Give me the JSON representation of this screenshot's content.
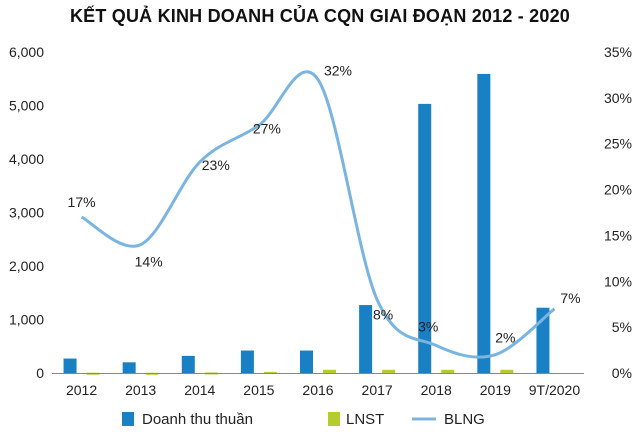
{
  "chart_data": {
    "type": "bar",
    "title": "KẾT QUẢ KINH DOANH CỦA CQN GIAI ĐOẠN 2012 - 2020",
    "categories": [
      "2012",
      "2013",
      "2014",
      "2015",
      "2016",
      "2017",
      "2018",
      "2019",
      "9T/2020"
    ],
    "y_left": {
      "range": [
        0,
        6000
      ],
      "ticks": [
        0,
        1000,
        2000,
        3000,
        4000,
        5000,
        6000
      ],
      "tick_labels": [
        "0",
        "1,000",
        "2,000",
        "3,000",
        "4,000",
        "5,000",
        "6,000"
      ]
    },
    "y_right": {
      "range": [
        0,
        35
      ],
      "ticks": [
        0,
        5,
        10,
        15,
        20,
        25,
        30,
        35
      ],
      "tick_labels": [
        "0%",
        "5%",
        "10%",
        "15%",
        "20%",
        "25%",
        "30%",
        "35%"
      ]
    },
    "series": [
      {
        "name": "Doanh thu thuần",
        "type": "bar",
        "axis": "left",
        "color": "#1a80c4",
        "values": [
          270,
          200,
          320,
          420,
          420,
          1270,
          5030,
          5590,
          1220
        ]
      },
      {
        "name": "LNST",
        "type": "bar",
        "axis": "left",
        "color": "#b5cc2e",
        "values": [
          5,
          5,
          10,
          20,
          60,
          60,
          60,
          60,
          0
        ]
      },
      {
        "name": "BLNG",
        "type": "line",
        "axis": "right",
        "color": "#7ab4e0",
        "values": [
          17,
          14,
          23,
          27,
          32,
          8,
          3,
          2,
          7
        ],
        "data_labels": [
          "17%",
          "14%",
          "23%",
          "27%",
          "32%",
          "8%",
          "3%",
          "2%",
          "7%"
        ]
      }
    ],
    "legend_position": "bottom",
    "grid": false
  }
}
